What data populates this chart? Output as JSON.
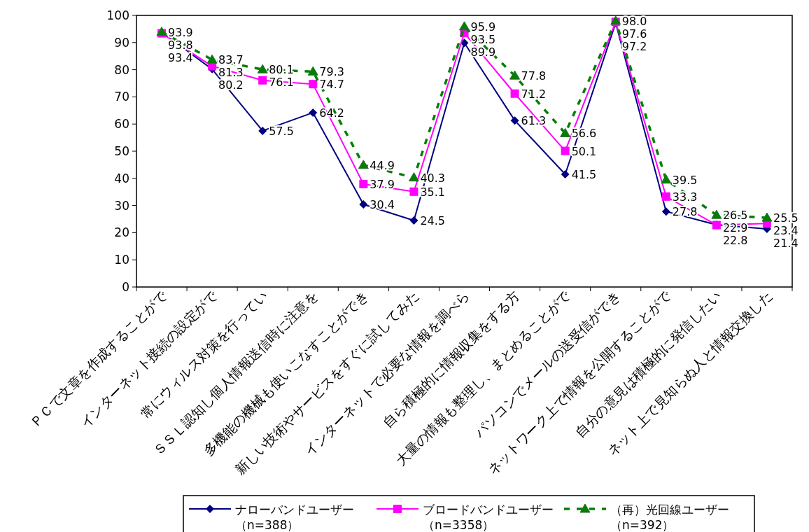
{
  "chart_data": {
    "type": "line",
    "categories": [
      "ＰＣで文章を作成することがで",
      "インターネット接続の設定がで",
      "常にウィルス対策を行ってい",
      "ＳＳＬ認知し個人情報送信時に注意を",
      "多機能の機械も使いこなすことができ",
      "新しい技術やサービスをすぐに試してみた",
      "インターネットで必要な情報を調べら",
      "自ら積極的に情報収集をする方",
      "大量の情報も整理し、まとめることがで",
      "パソコンでメールの送受信ができ",
      "ネットワーク上で情報を公開することがで",
      "自分の意見は積極的に発信したい",
      "ネット上で見知らぬ人と情報交換した"
    ],
    "series": [
      {
        "name": "ナローバンドユーザー（n=388）",
        "color": "#000080",
        "marker": "diamond",
        "line_style": "solid",
        "values": [
          93.8,
          80.2,
          57.5,
          64.2,
          30.4,
          24.5,
          89.9,
          61.3,
          41.5,
          97.2,
          27.8,
          22.9,
          21.4
        ],
        "value_labels": [
          "93.8",
          "80.2",
          "57.5",
          "64.2",
          "30.4",
          "24.5",
          "89.9",
          "61.3",
          "41.5",
          "97.2",
          "27.8",
          "22.9",
          "21.4"
        ]
      },
      {
        "name": "ブロードバンドユーザー（n=3358）",
        "color": "#ff00ff",
        "marker": "square",
        "line_style": "solid",
        "values": [
          93.4,
          81.3,
          76.1,
          74.7,
          37.9,
          35.1,
          93.5,
          71.2,
          50.1,
          97.6,
          33.3,
          22.8,
          23.4
        ],
        "value_labels": [
          "93.4",
          "81.3",
          "76.1",
          "74.7",
          "37.9",
          "35.1",
          "93.5",
          "71.2",
          "50.1",
          "97.6",
          "33.3",
          "22.8",
          "23.4"
        ]
      },
      {
        "name": "（再）光回線ユーザー（n=392）",
        "color": "#008000",
        "marker": "triangle",
        "line_style": "dashed",
        "values": [
          93.9,
          83.7,
          80.1,
          79.3,
          44.9,
          40.3,
          95.9,
          77.8,
          56.6,
          98.0,
          39.5,
          26.5,
          25.5
        ],
        "value_labels": [
          "93.9",
          "83.7",
          "80.1",
          "79.3",
          "44.9",
          "40.3",
          "95.9",
          "77.8",
          "56.6",
          "98.0",
          "39.5",
          "26.5",
          "25.5"
        ]
      }
    ],
    "ylim": [
      0,
      100
    ],
    "yticks": [
      0,
      10,
      20,
      30,
      40,
      50,
      60,
      70,
      80,
      90,
      100
    ],
    "grid": false,
    "legend": "bottom"
  }
}
